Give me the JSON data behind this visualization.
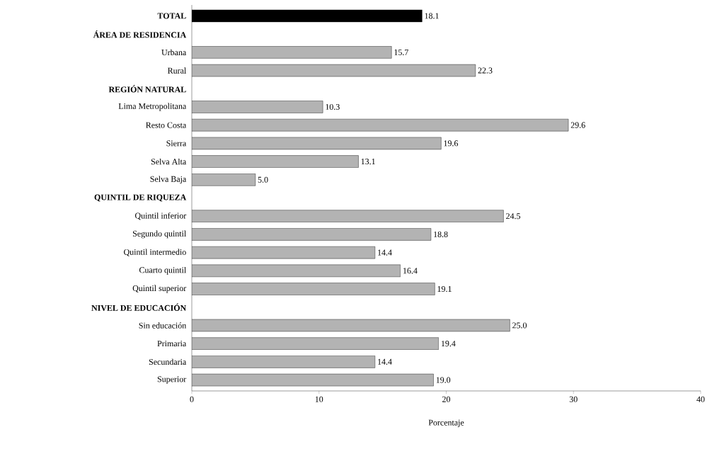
{
  "chart_data": {
    "type": "bar",
    "orientation": "horizontal",
    "categories": [
      "**TOTAL**",
      "**ÁREA DE RESIDENCIA**",
      "Urbana",
      "Rural",
      "**REGIÓN NATURAL**",
      "Lima Metropolitana",
      "Resto Costa",
      "Sierra",
      "Selva Alta",
      "Selva Baja",
      "**QUINTIL DE RIQUEZA**",
      "Quintil inferior",
      "Segundo quintil",
      "Quintil intermedio",
      "Cuarto quintil",
      "Quintil superior",
      "**NIVEL DE EDUCACIÓN**",
      "Sin educación",
      "Primaria",
      "Secundaria",
      "Superior"
    ],
    "values": [
      18.1,
      null,
      15.7,
      22.3,
      null,
      10.3,
      29.6,
      19.6,
      13.1,
      5.0,
      null,
      24.5,
      18.8,
      14.4,
      16.4,
      19.1,
      null,
      25.0,
      19.4,
      14.4,
      19.0
    ],
    "colors": [
      "#000000",
      null,
      "#b3b3b3",
      "#b3b3b3",
      null,
      "#b3b3b3",
      "#b3b3b3",
      "#b3b3b3",
      "#b3b3b3",
      "#b3b3b3",
      null,
      "#b3b3b3",
      "#b3b3b3",
      "#b3b3b3",
      "#b3b3b3",
      "#b3b3b3",
      null,
      "#b3b3b3",
      "#b3b3b3",
      "#b3b3b3",
      "#b3b3b3"
    ],
    "value_labels": [
      "18.1",
      null,
      "15.7",
      "22.3",
      null,
      "10.3",
      "29.6",
      "19.6",
      "13.1",
      "5.0",
      null,
      "24.5",
      "18.8",
      "14.4",
      "16.4",
      "19.1",
      null,
      "25.0",
      "19.4",
      "14.4",
      "19.0"
    ],
    "xlim": [
      0,
      40
    ],
    "xticks": [
      0,
      10,
      20,
      30,
      40
    ],
    "xlabel": "Porcentaje",
    "grid": false
  }
}
